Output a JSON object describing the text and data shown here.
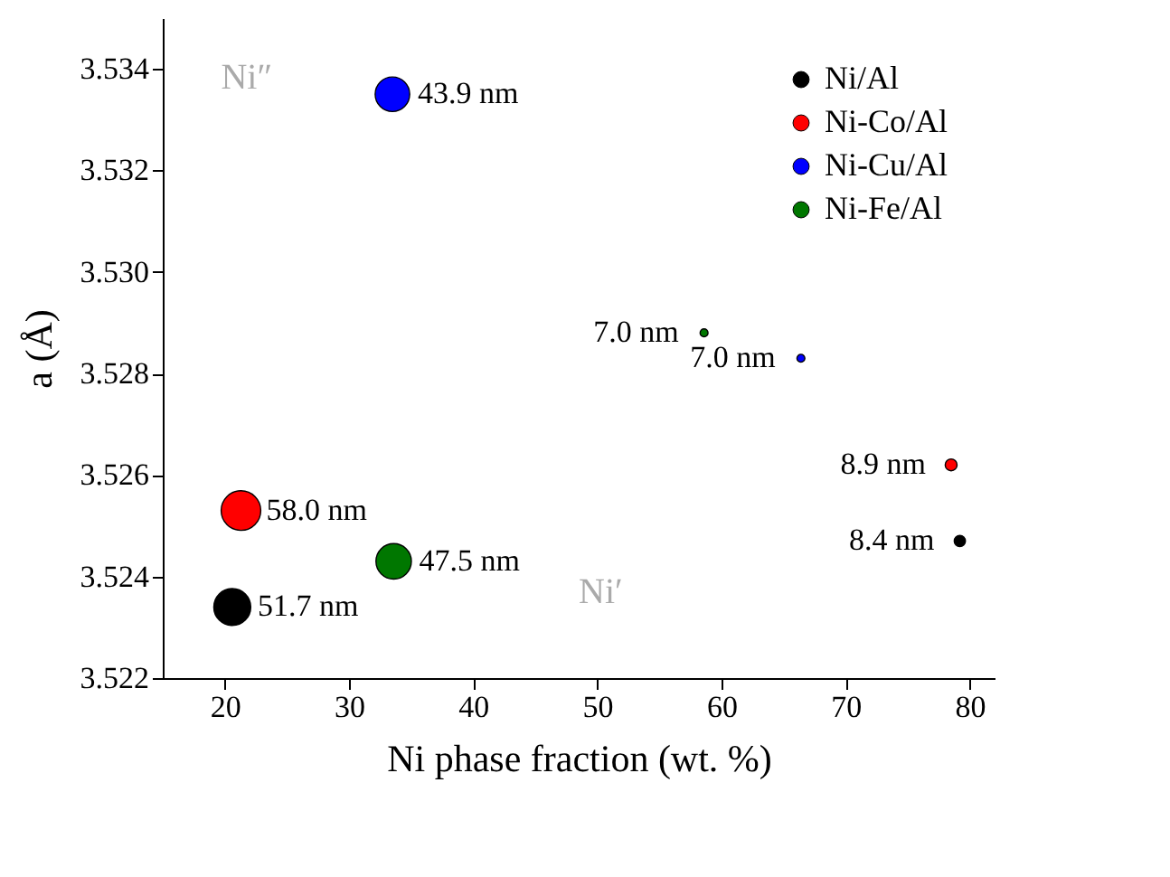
{
  "chart_data": {
    "type": "bubble",
    "xlabel": "Ni phase fraction (wt. %)",
    "ylabel": "a (Å)",
    "xlim": [
      15,
      82
    ],
    "ylim": [
      3.522,
      3.535
    ],
    "xticks": [
      20,
      30,
      40,
      50,
      60,
      70,
      80
    ],
    "yticks": [
      3.522,
      3.524,
      3.526,
      3.528,
      {
        "value": 3.53,
        "label": "3.530"
      },
      3.532,
      3.534
    ],
    "series": [
      {
        "name": "Ni/Al",
        "color": "#000000",
        "x": [
          20.6,
          79.2
        ],
        "values": [
          3.5234,
          3.5247
        ],
        "sizes": [
          0.87,
          0.08
        ]
      },
      {
        "name": "Ni-Co/Al",
        "color": "#ff0000",
        "x": [
          21.3,
          78.5
        ],
        "values": [
          3.5253,
          3.5262
        ],
        "sizes": [
          1,
          0.09
        ]
      },
      {
        "name": "Ni-Cu/Al",
        "color": "#0000ff",
        "x": [
          33.5,
          66.4
        ],
        "values": [
          3.5335,
          3.5283
        ],
        "sizes": [
          0.76,
          0.04
        ]
      },
      {
        "name": "Ni-Fe/Al",
        "color": "#007700",
        "x": [
          33.6,
          58.6
        ],
        "values": [
          3.5243,
          3.5288
        ],
        "sizes": [
          0.8,
          0.04
        ]
      }
    ],
    "annotations": [
      "Ni″",
      "Ni′",
      {
        "text": "51.7 nm",
        "x": 20.6,
        "y": 3.5234
      },
      {
        "text": "8.4 nm",
        "x": 79.2,
        "y": 3.5247
      },
      {
        "text": "58.0 nm",
        "x": 21.3,
        "y": 3.5253
      },
      {
        "text": "8.9 nm",
        "x": 78.5,
        "y": 3.5262
      },
      {
        "text": "43.9 nm",
        "x": 33.5,
        "y": 3.5335
      },
      {
        "text": "7.0 nm",
        "x": 66.4,
        "y": 3.5283
      },
      {
        "text": "47.5 nm",
        "x": 33.6,
        "y": 3.5243
      },
      {
        "text": "7.0 nm",
        "x": 58.6,
        "y": 3.5288
      }
    ],
    "legend": "top right",
    "grid": false,
    "marker": "circle"
  }
}
